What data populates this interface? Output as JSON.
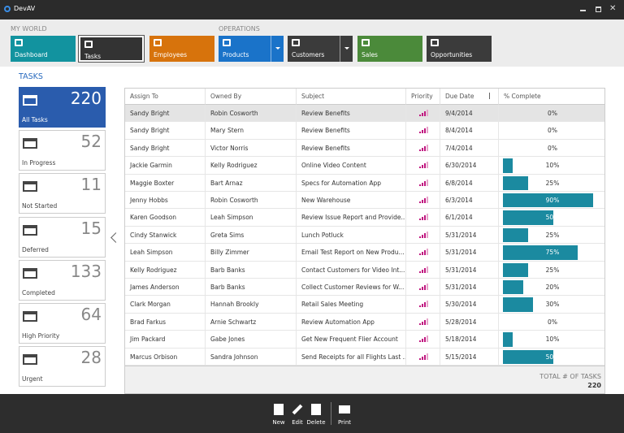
{
  "window": {
    "title": "DevAV"
  },
  "ribbon": {
    "groups": [
      {
        "label": "MY WORLD",
        "items": [
          "Dashboard",
          "Tasks",
          "Employees"
        ]
      },
      {
        "label": "OPERATIONS",
        "items": [
          "Products",
          "Customers",
          "Sales",
          "Opportunities"
        ]
      }
    ]
  },
  "section_title": "TASKS",
  "filters": [
    {
      "count": 220,
      "label": "All Tasks"
    },
    {
      "count": 52,
      "label": "In Progress"
    },
    {
      "count": 11,
      "label": "Not Started"
    },
    {
      "count": 15,
      "label": "Deferred"
    },
    {
      "count": 133,
      "label": "Completed"
    },
    {
      "count": 64,
      "label": "High Priority"
    },
    {
      "count": 28,
      "label": "Urgent"
    }
  ],
  "table": {
    "columns": [
      "Assign To",
      "Owned By",
      "Subject",
      "Priority",
      "Due Date",
      "% Complete"
    ],
    "rows": [
      {
        "assign": "Sandy Bright",
        "owner": "Robin Cosworth",
        "subject": "Review Benefits",
        "due": "9/4/2014",
        "complete": {
          "value": 0,
          "label": "0%"
        }
      },
      {
        "assign": "Sandy Bright",
        "owner": "Mary Stern",
        "subject": "Review Benefits",
        "due": "8/4/2014",
        "complete": {
          "value": 0,
          "label": "0%"
        }
      },
      {
        "assign": "Sandy Bright",
        "owner": "Victor Norris",
        "subject": "Review Benefits",
        "due": "7/4/2014",
        "complete": {
          "value": 0,
          "label": "0%"
        }
      },
      {
        "assign": "Jackie Garmin",
        "owner": "Kelly Rodriguez",
        "subject": "Online Video Content",
        "due": "6/30/2014",
        "complete": {
          "value": 10,
          "label": "10%"
        }
      },
      {
        "assign": "Maggie Boxter",
        "owner": "Bart Arnaz",
        "subject": "Specs for Automation App",
        "due": "6/8/2014",
        "complete": {
          "value": 25,
          "label": "25%"
        }
      },
      {
        "assign": "Jenny Hobbs",
        "owner": "Robin Cosworth",
        "subject": "New Warehouse",
        "due": "6/3/2014",
        "complete": {
          "value": 90,
          "label": "90%"
        }
      },
      {
        "assign": "Karen Goodson",
        "owner": "Leah Simpson",
        "subject": "Review Issue Report and Provide...",
        "due": "6/1/2014",
        "complete": {
          "value": 50,
          "label": "50%"
        }
      },
      {
        "assign": "Cindy Stanwick",
        "owner": "Greta Sims",
        "subject": "Lunch Potluck",
        "due": "5/31/2014",
        "complete": {
          "value": 25,
          "label": "25%"
        }
      },
      {
        "assign": "Leah Simpson",
        "owner": "Billy Zimmer",
        "subject": "Email Test Report on New Produ...",
        "due": "5/31/2014",
        "complete": {
          "value": 75,
          "label": "75%"
        }
      },
      {
        "assign": "Kelly Rodriguez",
        "owner": "Barb Banks",
        "subject": "Contact Customers for Video Int...",
        "due": "5/31/2014",
        "complete": {
          "value": 25,
          "label": "25%"
        }
      },
      {
        "assign": "James Anderson",
        "owner": "Barb Banks",
        "subject": "Collect Customer Reviews for W...",
        "due": "5/31/2014",
        "complete": {
          "value": 20,
          "label": "20%"
        }
      },
      {
        "assign": "Clark Morgan",
        "owner": "Hannah Brookly",
        "subject": "Retail Sales Meeting",
        "due": "5/30/2014",
        "complete": {
          "value": 30,
          "label": "30%"
        }
      },
      {
        "assign": "Brad Farkus",
        "owner": "Arnie Schwartz",
        "subject": "Review Automation App",
        "due": "5/28/2014",
        "complete": {
          "value": 0,
          "label": "0%"
        }
      },
      {
        "assign": "Jim Packard",
        "owner": "Gabe Jones",
        "subject": "Get New Frequent Flier Account",
        "due": "5/18/2014",
        "complete": {
          "value": 10,
          "label": "10%"
        }
      },
      {
        "assign": "Marcus Orbison",
        "owner": "Sandra Johnson",
        "subject": "Send Receipts for all Flights Last ...",
        "due": "5/15/2014",
        "complete": {
          "value": 50,
          "label": "50%"
        }
      }
    ]
  },
  "footer": {
    "label": "TOTAL # OF TASKS",
    "value": 220
  },
  "toolbar": [
    "New",
    "Edit",
    "Delete",
    "Print"
  ]
}
